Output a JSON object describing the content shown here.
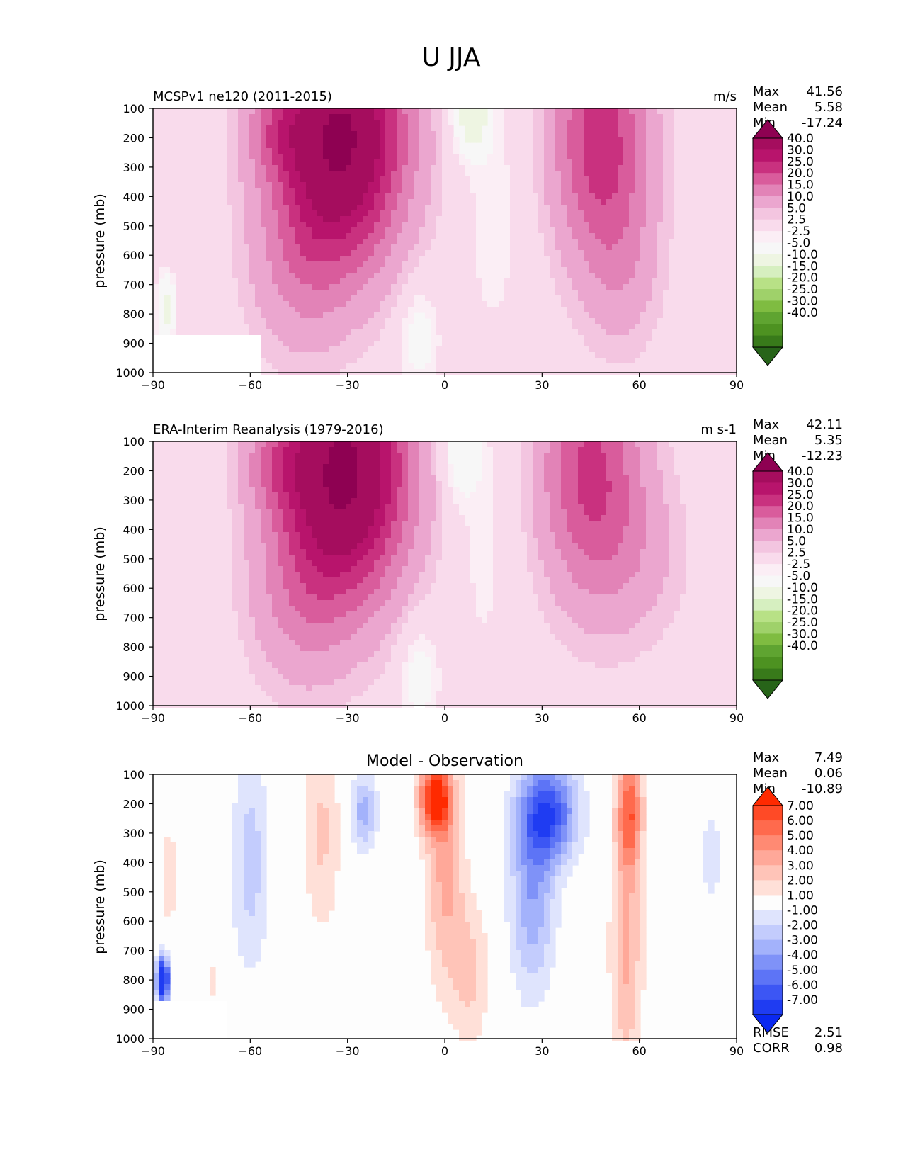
{
  "figure_title": "U JJA",
  "chart_data": [
    {
      "type": "contour",
      "title_left": "MCSPv1 ne120 (2011-2015)",
      "title_right": "m/s",
      "title_center": "",
      "ylabel": "pressure (mb)",
      "xlabel": "",
      "xlim": [
        -90,
        90
      ],
      "ylim": [
        1000,
        100
      ],
      "xticks": [
        "−90",
        "−60",
        "−30",
        "0",
        "30",
        "60",
        "90"
      ],
      "yticks": [
        "100",
        "200",
        "300",
        "400",
        "500",
        "600",
        "700",
        "800",
        "900",
        "1000"
      ],
      "stats": [
        {
          "label": "Max",
          "value": "41.56"
        },
        {
          "label": "Mean",
          "value": "5.58"
        },
        {
          "label": "Min",
          "value": "-17.24"
        }
      ],
      "extra_stats": [],
      "colorbar_labels": [
        "40.0",
        "30.0",
        "25.0",
        "20.0",
        "15.0",
        "10.0",
        "5.0",
        "2.5",
        "-2.5",
        "-5.0",
        "-10.0",
        "-15.0",
        "-20.0",
        "-25.0",
        "-30.0",
        "-40.0"
      ],
      "colorbar_colors": [
        "#8e0152",
        "#a50d5e",
        "#b8146c",
        "#c9317f",
        "#d95c9c",
        "#e283b7",
        "#eba6cf",
        "#f3c5e0",
        "#f9dbec",
        "#fbeef5",
        "#f7f7f7",
        "#eef5e2",
        "#d6efc0",
        "#b8e186",
        "#9fd16a",
        "#7fbc41",
        "#5fa431",
        "#4d9221",
        "#387a1a",
        "#276419"
      ],
      "field": {
        "base": "#f7f7f7",
        "features": [
          {
            "lat": -32,
            "p": 200,
            "slat": 20,
            "sp": 420,
            "amp": 41.5
          },
          {
            "lat": -52,
            "p": 180,
            "slat": 10,
            "sp": 150,
            "amp": 8
          },
          {
            "lat": -45,
            "p": 650,
            "slat": 16,
            "sp": 320,
            "amp": 8
          },
          {
            "lat": 48,
            "p": 200,
            "slat": 15,
            "sp": 420,
            "amp": 23
          },
          {
            "lat": 55,
            "p": 650,
            "slat": 12,
            "sp": 300,
            "amp": 6
          },
          {
            "lat": 8,
            "p": 120,
            "slat": 6,
            "sp": 140,
            "amp": -14
          },
          {
            "lat": -8,
            "p": 880,
            "slat": 6,
            "sp": 180,
            "amp": -8
          },
          {
            "lat": 15,
            "p": 450,
            "slat": 10,
            "sp": 500,
            "amp": -4
          },
          {
            "lat": -86,
            "p": 780,
            "slat": 3,
            "sp": 120,
            "amp": -12
          }
        ],
        "mask": {
          "lat_min": -90,
          "lat_max": -57,
          "p_min": 870
        }
      }
    },
    {
      "type": "contour",
      "title_left": "ERA-Interim Reanalysis (1979-2016)",
      "title_right": "m s-1",
      "title_center": "",
      "ylabel": "pressure (mb)",
      "xlabel": "",
      "xlim": [
        -90,
        90
      ],
      "ylim": [
        1000,
        100
      ],
      "xticks": [
        "−90",
        "−60",
        "−30",
        "0",
        "30",
        "60",
        "90"
      ],
      "yticks": [
        "100",
        "200",
        "300",
        "400",
        "500",
        "600",
        "700",
        "800",
        "900",
        "1000"
      ],
      "stats": [
        {
          "label": "Max",
          "value": "42.11"
        },
        {
          "label": "Mean",
          "value": "5.35"
        },
        {
          "label": "Min",
          "value": "-12.23"
        }
      ],
      "extra_stats": [],
      "colorbar_labels": [
        "40.0",
        "30.0",
        "25.0",
        "20.0",
        "15.0",
        "10.0",
        "5.0",
        "2.5",
        "-2.5",
        "-5.0",
        "-10.0",
        "-15.0",
        "-20.0",
        "-25.0",
        "-30.0",
        "-40.0"
      ],
      "colorbar_colors": [
        "#8e0152",
        "#a50d5e",
        "#b8146c",
        "#c9317f",
        "#d95c9c",
        "#e283b7",
        "#eba6cf",
        "#f3c5e0",
        "#f9dbec",
        "#fbeef5",
        "#f7f7f7",
        "#eef5e2",
        "#d6efc0",
        "#b8e186",
        "#9fd16a",
        "#7fbc41",
        "#5fa431",
        "#4d9221",
        "#387a1a",
        "#276419"
      ],
      "field": {
        "base": "#f7f7f7",
        "features": [
          {
            "lat": -31,
            "p": 200,
            "slat": 20,
            "sp": 430,
            "amp": 42
          },
          {
            "lat": -52,
            "p": 180,
            "slat": 10,
            "sp": 150,
            "amp": 8
          },
          {
            "lat": -45,
            "p": 650,
            "slat": 16,
            "sp": 320,
            "amp": 8
          },
          {
            "lat": 45,
            "p": 200,
            "slat": 16,
            "sp": 430,
            "amp": 21
          },
          {
            "lat": 60,
            "p": 500,
            "slat": 16,
            "sp": 300,
            "amp": 5
          },
          {
            "lat": 5,
            "p": 140,
            "slat": 6,
            "sp": 160,
            "amp": -10
          },
          {
            "lat": -8,
            "p": 900,
            "slat": 6,
            "sp": 180,
            "amp": -8
          },
          {
            "lat": 12,
            "p": 450,
            "slat": 10,
            "sp": 500,
            "amp": -3.5
          }
        ],
        "mask": null
      }
    },
    {
      "type": "contour",
      "title_left": "",
      "title_right": "",
      "title_center": "Model - Observation",
      "ylabel": "pressure (mb)",
      "xlabel": "",
      "xlim": [
        -90,
        90
      ],
      "ylim": [
        1000,
        100
      ],
      "xticks": [
        "−90",
        "−60",
        "−30",
        "0",
        "30",
        "60",
        "90"
      ],
      "yticks": [
        "100",
        "200",
        "300",
        "400",
        "500",
        "600",
        "700",
        "800",
        "900",
        "1000"
      ],
      "stats": [
        {
          "label": "Max",
          "value": "7.49"
        },
        {
          "label": "Mean",
          "value": "0.06"
        },
        {
          "label": "Min",
          "value": "-10.89"
        }
      ],
      "extra_stats": [
        {
          "label": "RMSE",
          "value": "2.51"
        },
        {
          "label": "CORR",
          "value": "0.98"
        }
      ],
      "colorbar_labels": [
        "7.00",
        "6.00",
        "5.00",
        "4.00",
        "3.00",
        "2.00",
        "1.00",
        "-1.00",
        "-2.00",
        "-3.00",
        "-4.00",
        "-5.00",
        "-6.00",
        "-7.00"
      ],
      "colorbar_colors": [
        "#ff2a00",
        "#ff4a26",
        "#ff6a4d",
        "#ff8a73",
        "#ffa899",
        "#ffc4b8",
        "#ffe0d8",
        "#fdfdfd",
        "#dfe4fd",
        "#c3ccfd",
        "#a3b2fb",
        "#7f92f8",
        "#5d74f6",
        "#3c56f4",
        "#1f3cf2",
        "#0a28f0"
      ],
      "field": {
        "base": "#fdfdfd",
        "features": [
          {
            "lat": -3,
            "p": 180,
            "slat": 5,
            "sp": 120,
            "amp": 7.4
          },
          {
            "lat": 0,
            "p": 450,
            "slat": 6,
            "sp": 380,
            "amp": 3.2
          },
          {
            "lat": 8,
            "p": 780,
            "slat": 6,
            "sp": 250,
            "amp": 2.2
          },
          {
            "lat": 57,
            "p": 220,
            "slat": 4,
            "sp": 200,
            "amp": 5.2
          },
          {
            "lat": 56,
            "p": 700,
            "slat": 5,
            "sp": 450,
            "amp": 3.2
          },
          {
            "lat": -38,
            "p": 300,
            "slat": 6,
            "sp": 350,
            "amp": 2.2
          },
          {
            "lat": -85,
            "p": 450,
            "slat": 3,
            "sp": 250,
            "amp": 1.4
          },
          {
            "lat": -72,
            "p": 800,
            "slat": 2,
            "sp": 100,
            "amp": 1.4
          },
          {
            "lat": 32,
            "p": 230,
            "slat": 9,
            "sp": 170,
            "amp": -6.5
          },
          {
            "lat": 27,
            "p": 520,
            "slat": 7,
            "sp": 330,
            "amp": -3.8
          },
          {
            "lat": -25,
            "p": 230,
            "slat": 4,
            "sp": 130,
            "amp": -3.5
          },
          {
            "lat": -60,
            "p": 400,
            "slat": 6,
            "sp": 380,
            "amp": -2.5
          },
          {
            "lat": 82,
            "p": 380,
            "slat": 4,
            "sp": 170,
            "amp": -1.6
          },
          {
            "lat": -87,
            "p": 800,
            "slat": 2,
            "sp": 80,
            "amp": -10.5
          }
        ],
        "mask": {
          "lat_min": -90,
          "lat_max": -68,
          "p_min": 870
        }
      }
    }
  ]
}
